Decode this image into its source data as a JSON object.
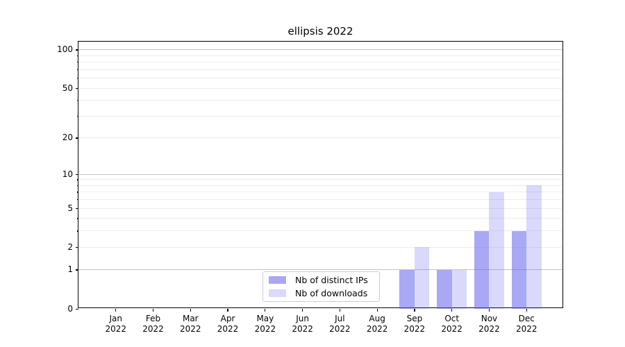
{
  "chart_data": {
    "type": "bar",
    "title": "ellipsis 2022",
    "categories": [
      "Jan",
      "Feb",
      "Mar",
      "Apr",
      "May",
      "Jun",
      "Jul",
      "Aug",
      "Sep",
      "Oct",
      "Nov",
      "Dec"
    ],
    "x_tick_year": "2022",
    "series": [
      {
        "name": "Nb of distinct IPs",
        "color": "rgba(102,102,238,0.57)",
        "values": [
          0,
          0,
          0,
          0,
          0,
          0,
          0,
          0,
          1,
          1,
          3,
          3
        ]
      },
      {
        "name": "Nb of downloads",
        "color": "rgba(102,102,238,0.25)",
        "values": [
          0,
          0,
          0,
          0,
          0,
          0,
          0,
          0,
          2,
          1,
          7,
          8
        ]
      }
    ],
    "y_axis": {
      "scale": "log1p",
      "ylim": [
        0,
        116
      ],
      "tick_values": [
        0,
        1,
        2,
        5,
        10,
        20,
        50,
        100
      ],
      "tick_labels": [
        "0",
        "1",
        "2",
        "5",
        "10",
        "20",
        "50",
        "100"
      ],
      "major_grid_values": [
        1,
        10,
        100
      ],
      "minor_grid_values": [
        2,
        3,
        4,
        5,
        6,
        7,
        8,
        9,
        20,
        30,
        40,
        50,
        60,
        70,
        80,
        90
      ]
    },
    "grid": true,
    "legend": {
      "position": "lower-center"
    }
  },
  "colors": {
    "major_grid": "#c3c3c3",
    "minor_grid": "#ececec",
    "spine": "#000000",
    "legend_border": "#cccccc",
    "background": "#ffffff"
  }
}
